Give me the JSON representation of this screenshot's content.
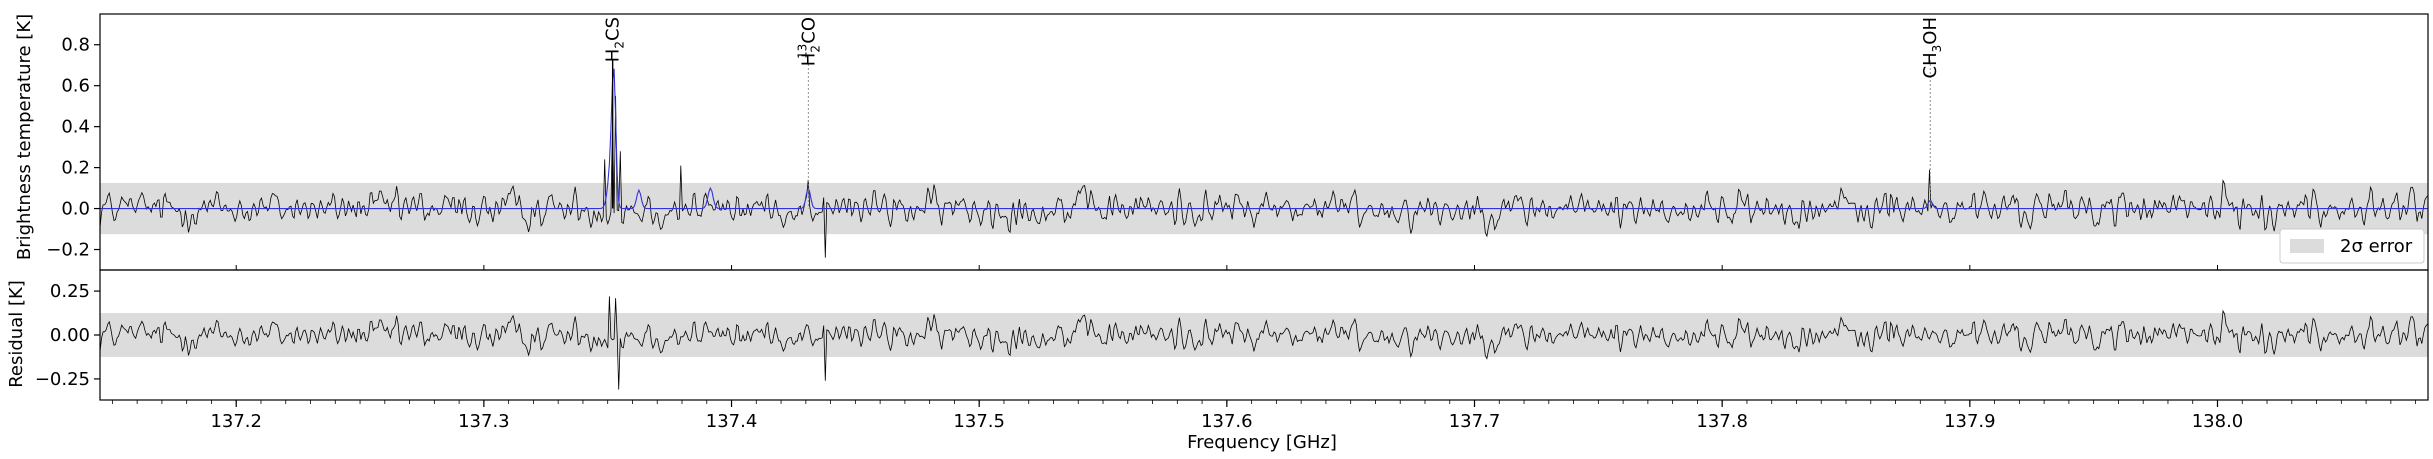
{
  "chart_data": [
    {
      "type": "line",
      "panel": "top",
      "ylabel": "Brightness temperature [K]",
      "xlim": [
        137.145,
        138.085
      ],
      "ylim": [
        -0.3,
        0.95
      ],
      "yticks": [
        -0.2,
        0.0,
        0.2,
        0.4,
        0.6,
        0.8
      ],
      "ytick_labels": [
        "−0.2",
        "0.0",
        "0.2",
        "0.4",
        "0.6",
        "0.8"
      ],
      "error_band": [
        -0.125,
        0.125
      ],
      "legend": {
        "label": "2σ error",
        "placement": "lower-right"
      },
      "series": [
        {
          "role": "observed",
          "color": "#000000",
          "noise_rms": 0.055,
          "features": [
            {
              "x": 137.349,
              "y": 0.24
            },
            {
              "x": 137.352,
              "y": 0.42
            },
            {
              "x": 137.353,
              "y": 0.55
            },
            {
              "x": 137.355,
              "y": 0.28
            },
            {
              "x": 137.3795,
              "y": 0.21
            },
            {
              "x": 137.431,
              "y": 0.14
            },
            {
              "x": 137.438,
              "y": -0.24
            },
            {
              "x": 137.884,
              "y": 0.19
            }
          ]
        },
        {
          "role": "model",
          "color": "#3333dd",
          "baseline": 0.0,
          "peaks": [
            {
              "x": 137.3513,
              "amp": 0.2,
              "width": 0.0012
            },
            {
              "x": 137.3525,
              "amp": 0.57,
              "width": 0.0008
            },
            {
              "x": 137.3626,
              "amp": 0.09,
              "width": 0.0009
            },
            {
              "x": 137.3915,
              "amp": 0.1,
              "width": 0.001
            },
            {
              "x": 137.431,
              "amp": 0.1,
              "width": 0.0009
            },
            {
              "x": 137.884,
              "amp": 0.04,
              "width": 0.0009
            }
          ]
        }
      ],
      "annotations": [
        {
          "x": 137.352,
          "base": "H",
          "sub": "2",
          "sup": "",
          "tail": "CS",
          "style": "solid"
        },
        {
          "x": 137.431,
          "base": "H",
          "sub": "2",
          "sup": "13",
          "tail": "CO",
          "style": "dotted"
        },
        {
          "x": 137.884,
          "base": "CH",
          "sub": "3",
          "sup": "",
          "tail": "OH",
          "style": "dotted"
        }
      ]
    },
    {
      "type": "line",
      "panel": "bottom",
      "ylabel": "Residual [K]",
      "xlabel": "Frequency [GHz]",
      "xlim": [
        137.145,
        138.085
      ],
      "ylim": [
        -0.37,
        0.37
      ],
      "yticks": [
        -0.25,
        0.0,
        0.25
      ],
      "ytick_labels": [
        "−0.25",
        "0.00",
        "0.25"
      ],
      "xticks": [
        137.2,
        137.3,
        137.4,
        137.5,
        137.6,
        137.7,
        137.8,
        137.9,
        138.0
      ],
      "xtick_labels": [
        "137.2",
        "137.3",
        "137.4",
        "137.5",
        "137.6",
        "137.7",
        "137.8",
        "137.9",
        "138.0"
      ],
      "error_band": [
        -0.125,
        0.125
      ],
      "series": [
        {
          "role": "residual",
          "color": "#000000",
          "noise_rms": 0.055,
          "features": [
            {
              "x": 137.3505,
              "y": 0.22
            },
            {
              "x": 137.3535,
              "y": 0.21
            },
            {
              "x": 137.3545,
              "y": -0.31
            },
            {
              "x": 137.438,
              "y": -0.26
            }
          ]
        }
      ]
    }
  ]
}
